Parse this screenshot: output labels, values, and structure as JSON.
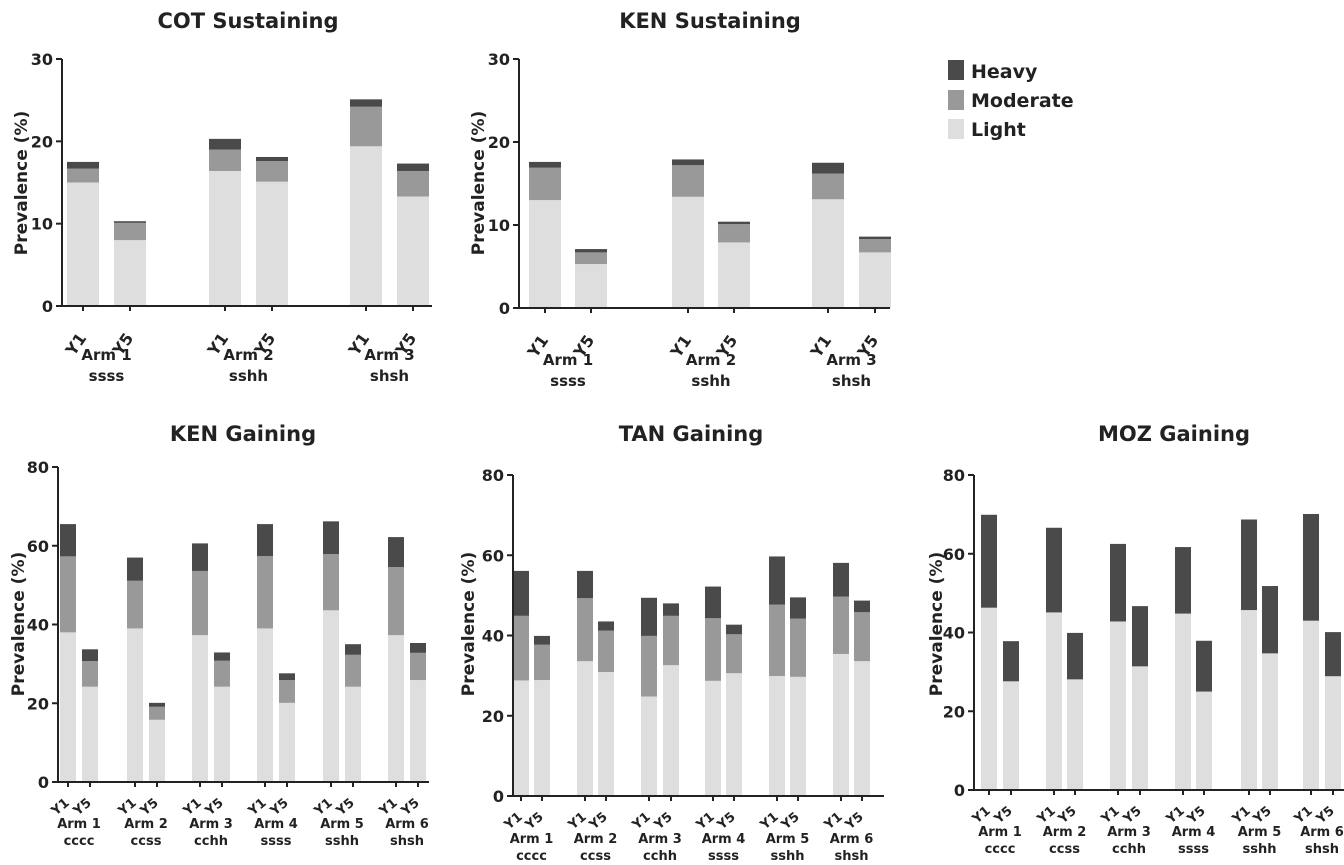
{
  "legend": {
    "items": [
      {
        "label": "Heavy",
        "color": "#4a4a4a"
      },
      {
        "label": "Moderate",
        "color": "#999999"
      },
      {
        "label": "Light",
        "color": "#dedede"
      }
    ]
  },
  "chart_data": [
    {
      "type": "bar",
      "stacked": true,
      "title": "COT Sustaining",
      "ylabel": "Prevalence (%)",
      "ylim": [
        0,
        30
      ],
      "yticks": [
        0,
        10,
        20,
        30
      ],
      "groups": [
        {
          "arm": "Arm 1",
          "code": "ssss"
        },
        {
          "arm": "Arm 2",
          "code": "sshh"
        },
        {
          "arm": "Arm 3",
          "code": "shsh"
        }
      ],
      "categories": [
        "Y1",
        "Y5",
        "Y1",
        "Y5",
        "Y1",
        "Y5"
      ],
      "series": [
        {
          "name": "Light",
          "values": [
            15.0,
            8.0,
            16.4,
            15.1,
            19.4,
            13.3
          ]
        },
        {
          "name": "Moderate",
          "values": [
            1.7,
            2.1,
            2.6,
            2.5,
            4.8,
            3.1
          ]
        },
        {
          "name": "Heavy",
          "values": [
            0.8,
            0.2,
            1.3,
            0.5,
            0.9,
            0.9
          ]
        }
      ]
    },
    {
      "type": "bar",
      "stacked": true,
      "title": "KEN Sustaining",
      "ylabel": "Prevalence (%)",
      "ylim": [
        0,
        30
      ],
      "yticks": [
        0,
        10,
        20,
        30
      ],
      "groups": [
        {
          "arm": "Arm 1",
          "code": "ssss"
        },
        {
          "arm": "Arm 2",
          "code": "sshh"
        },
        {
          "arm": "Arm 3",
          "code": "shsh"
        }
      ],
      "categories": [
        "Y1",
        "Y5",
        "Y1",
        "Y5",
        "Y1",
        "Y5"
      ],
      "series": [
        {
          "name": "Light",
          "values": [
            13.0,
            5.3,
            13.4,
            7.9,
            13.1,
            6.7
          ]
        },
        {
          "name": "Moderate",
          "values": [
            3.9,
            1.4,
            3.8,
            2.2,
            3.1,
            1.6
          ]
        },
        {
          "name": "Heavy",
          "values": [
            0.7,
            0.4,
            0.7,
            0.3,
            1.3,
            0.3
          ]
        }
      ]
    },
    {
      "type": "bar",
      "stacked": true,
      "title": "KEN Gaining",
      "ylabel": "Prevalence (%)",
      "ylim": [
        0,
        80
      ],
      "yticks": [
        0,
        20,
        40,
        60,
        80
      ],
      "groups": [
        {
          "arm": "Arm 1",
          "code": "cccc"
        },
        {
          "arm": "Arm 2",
          "code": "ccss"
        },
        {
          "arm": "Arm 3",
          "code": "cchh"
        },
        {
          "arm": "Arm 4",
          "code": "ssss"
        },
        {
          "arm": "Arm 5",
          "code": "sshh"
        },
        {
          "arm": "Arm 6",
          "code": "shsh"
        }
      ],
      "categories": [
        "Y1",
        "Y5",
        "Y1",
        "Y5",
        "Y1",
        "Y5",
        "Y1",
        "Y5",
        "Y1",
        "Y5",
        "Y1",
        "Y5"
      ],
      "series": [
        {
          "name": "Light",
          "values": [
            38.0,
            24.2,
            39.0,
            15.8,
            37.3,
            24.2,
            39.0,
            20.1,
            43.6,
            24.2,
            37.3,
            25.9
          ]
        },
        {
          "name": "Moderate",
          "values": [
            19.3,
            6.5,
            12.1,
            3.3,
            16.3,
            6.6,
            18.4,
            5.8,
            14.3,
            8.1,
            17.3,
            6.9
          ]
        },
        {
          "name": "Heavy",
          "values": [
            8.2,
            3.0,
            5.9,
            1.0,
            7.0,
            2.1,
            8.1,
            1.7,
            8.3,
            2.7,
            7.6,
            2.5
          ]
        }
      ]
    },
    {
      "type": "bar",
      "stacked": true,
      "title": "TAN Gaining",
      "ylabel": "Prevalence (%)",
      "ylim": [
        0,
        80
      ],
      "yticks": [
        0,
        20,
        40,
        60,
        80
      ],
      "groups": [
        {
          "arm": "Arm 1",
          "code": "cccc"
        },
        {
          "arm": "Arm 2",
          "code": "ccss"
        },
        {
          "arm": "Arm 3",
          "code": "cchh"
        },
        {
          "arm": "Arm 4",
          "code": "ssss"
        },
        {
          "arm": "Arm 5",
          "code": "sshh"
        },
        {
          "arm": "Arm 6",
          "code": "shsh"
        }
      ],
      "categories": [
        "Y1",
        "Y5",
        "Y1",
        "Y5",
        "Y1",
        "Y5",
        "Y1",
        "Y5",
        "Y1",
        "Y5",
        "Y1",
        "Y5"
      ],
      "series": [
        {
          "name": "Light",
          "values": [
            28.8,
            28.9,
            33.6,
            30.9,
            24.8,
            32.6,
            28.7,
            30.6,
            29.9,
            29.7,
            35.4,
            33.6
          ]
        },
        {
          "name": "Moderate",
          "values": [
            16.1,
            8.8,
            15.7,
            10.3,
            15.1,
            12.3,
            15.6,
            9.7,
            17.8,
            14.5,
            14.3,
            12.2
          ]
        },
        {
          "name": "Heavy",
          "values": [
            11.2,
            2.2,
            6.8,
            2.3,
            9.5,
            3.1,
            7.9,
            2.4,
            12.0,
            5.3,
            8.4,
            2.9
          ]
        }
      ]
    },
    {
      "type": "bar",
      "stacked": true,
      "title": "MOZ Gaining",
      "ylabel": "Prevalence (%)",
      "ylim": [
        0,
        80
      ],
      "yticks": [
        0,
        20,
        40,
        60,
        80
      ],
      "groups": [
        {
          "arm": "Arm 1",
          "code": "cccc"
        },
        {
          "arm": "Arm 2",
          "code": "ccss"
        },
        {
          "arm": "Arm 3",
          "code": "cchh"
        },
        {
          "arm": "Arm 4",
          "code": "ssss"
        },
        {
          "arm": "Arm 5",
          "code": "sshh"
        },
        {
          "arm": "Arm 6",
          "code": "shsh"
        }
      ],
      "categories": [
        "Y1",
        "Y5",
        "Y1",
        "Y5",
        "Y1",
        "Y5",
        "Y1",
        "Y5",
        "Y1",
        "Y5",
        "Y1",
        "Y5"
      ],
      "series": [
        {
          "name": "Light",
          "values": [
            46.3,
            27.6,
            45.1,
            28.1,
            42.8,
            31.4,
            44.8,
            25.0,
            45.7,
            34.7,
            43.0,
            28.9
          ]
        },
        {
          "name": "Moderate",
          "values": [
            0,
            0,
            0,
            0,
            0,
            0,
            0,
            0,
            0,
            0,
            0,
            0
          ]
        },
        {
          "name": "Heavy",
          "values": [
            23.6,
            10.2,
            21.5,
            11.8,
            19.7,
            15.3,
            16.9,
            12.9,
            23.0,
            17.1,
            27.1,
            11.2
          ]
        }
      ]
    }
  ]
}
